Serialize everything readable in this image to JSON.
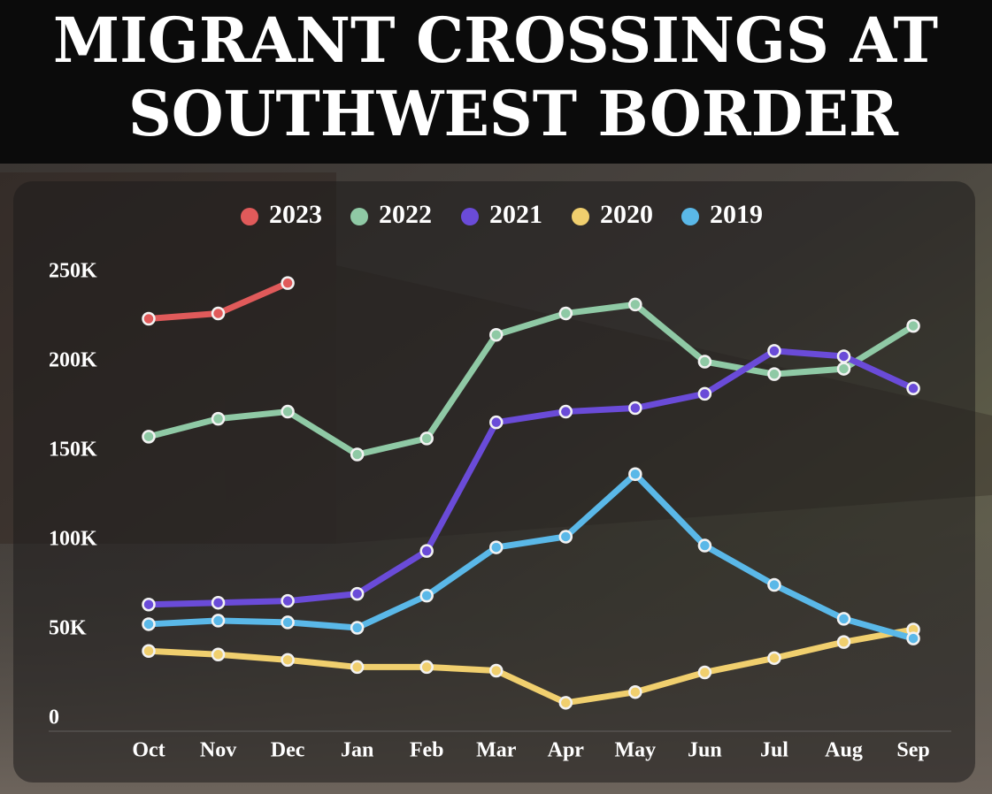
{
  "chart_data": {
    "type": "line",
    "title": [
      "MIGRANT CROSSINGS AT",
      "SOUTHWEST BORDER"
    ],
    "categories": [
      "Oct",
      "Nov",
      "Dec",
      "Jan",
      "Feb",
      "Mar",
      "Apr",
      "May",
      "Jun",
      "Jul",
      "Aug",
      "Sep"
    ],
    "series": [
      {
        "name": "2023",
        "color": "#e05a5a",
        "values": [
          224000,
          227000,
          244000,
          null,
          null,
          null,
          null,
          null,
          null,
          null,
          null,
          null
        ]
      },
      {
        "name": "2022",
        "color": "#8fc9a5",
        "values": [
          158000,
          168000,
          172000,
          148000,
          157000,
          215000,
          227000,
          232000,
          200000,
          193000,
          196000,
          220000
        ]
      },
      {
        "name": "2021",
        "color": "#6a4bd8",
        "values": [
          64000,
          65000,
          66000,
          70000,
          94000,
          166000,
          172000,
          174000,
          182000,
          206000,
          203000,
          185000
        ]
      },
      {
        "name": "2020",
        "color": "#f0cf6e",
        "values": [
          38000,
          36000,
          33000,
          29000,
          29000,
          27000,
          9000,
          15000,
          26000,
          34000,
          43000,
          50000
        ]
      },
      {
        "name": "2019",
        "color": "#5ab8e8",
        "values": [
          53000,
          55000,
          54000,
          51000,
          69000,
          96000,
          102000,
          137000,
          97000,
          75000,
          56000,
          45000
        ]
      }
    ],
    "ylim": [
      0,
      250000
    ],
    "yticks": [
      0,
      {
        "value": 50000,
        "label": "50K"
      },
      {
        "value": 100000,
        "label": "100K"
      },
      {
        "value": 150000,
        "label": "150K"
      },
      {
        "value": 200000,
        "label": "200K"
      },
      {
        "value": 250000,
        "label": "250K"
      }
    ],
    "legend": "top"
  }
}
